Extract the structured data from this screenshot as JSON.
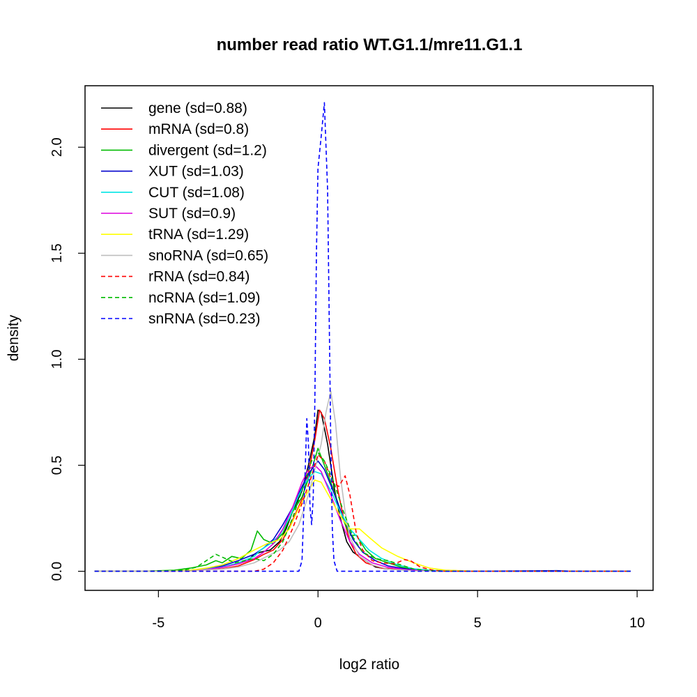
{
  "chart_data": {
    "type": "line",
    "title": "number read ratio WT.G1.1/mre11.G1.1",
    "xlabel": "log2 ratio",
    "ylabel": "density",
    "xlim": [
      -7.3,
      10.5
    ],
    "ylim": [
      -0.09,
      2.29
    ],
    "xticks": [
      -5,
      0,
      5,
      10
    ],
    "xtick_labels": [
      "-5",
      "0",
      "5",
      "10"
    ],
    "yticks": [
      0.0,
      0.5,
      1.0,
      1.5,
      2.0
    ],
    "ytick_labels": [
      "0.0",
      "0.5",
      "1.0",
      "1.5",
      "2.0"
    ],
    "grid": false,
    "legend_position": "top-left",
    "series": [
      {
        "name": "gene (sd=0.88)",
        "color": "#000000",
        "dash": "solid",
        "points": [
          [
            -7,
            0
          ],
          [
            -5,
            0
          ],
          [
            -4,
            0.002
          ],
          [
            -3.5,
            0.008
          ],
          [
            -3,
            0.02
          ],
          [
            -2.5,
            0.035
          ],
          [
            -2.2,
            0.05
          ],
          [
            -2,
            0.08
          ],
          [
            -1.8,
            0.09
          ],
          [
            -1.5,
            0.1
          ],
          [
            -1.2,
            0.14
          ],
          [
            -1,
            0.2
          ],
          [
            -0.8,
            0.28
          ],
          [
            -0.5,
            0.38
          ],
          [
            -0.3,
            0.5
          ],
          [
            -0.1,
            0.64
          ],
          [
            0,
            0.76
          ],
          [
            0.1,
            0.75
          ],
          [
            0.3,
            0.6
          ],
          [
            0.5,
            0.4
          ],
          [
            0.7,
            0.25
          ],
          [
            0.9,
            0.14
          ],
          [
            1.1,
            0.09
          ],
          [
            1.3,
            0.07
          ],
          [
            1.5,
            0.05
          ],
          [
            1.8,
            0.02
          ],
          [
            2.2,
            0.01
          ],
          [
            3,
            0.003
          ],
          [
            4,
            0
          ],
          [
            9.8,
            0
          ]
        ]
      },
      {
        "name": "mRNA (sd=0.8)",
        "color": "#ff0000",
        "dash": "solid",
        "points": [
          [
            -7,
            0
          ],
          [
            -5,
            0
          ],
          [
            -4,
            0.002
          ],
          [
            -3,
            0.012
          ],
          [
            -2.5,
            0.025
          ],
          [
            -2,
            0.055
          ],
          [
            -1.7,
            0.08
          ],
          [
            -1.4,
            0.1
          ],
          [
            -1.1,
            0.15
          ],
          [
            -0.8,
            0.24
          ],
          [
            -0.5,
            0.34
          ],
          [
            -0.3,
            0.46
          ],
          [
            -0.1,
            0.62
          ],
          [
            0.05,
            0.76
          ],
          [
            0.2,
            0.72
          ],
          [
            0.4,
            0.58
          ],
          [
            0.6,
            0.4
          ],
          [
            0.8,
            0.25
          ],
          [
            1,
            0.14
          ],
          [
            1.2,
            0.08
          ],
          [
            1.5,
            0.04
          ],
          [
            2,
            0.015
          ],
          [
            2.8,
            0.005
          ],
          [
            4,
            0
          ],
          [
            9.8,
            0
          ]
        ]
      },
      {
        "name": "divergent (sd=1.2)",
        "color": "#00bb00",
        "dash": "solid",
        "points": [
          [
            -7,
            0
          ],
          [
            -5.5,
            0
          ],
          [
            -4.5,
            0.005
          ],
          [
            -4,
            0.015
          ],
          [
            -3.5,
            0.03
          ],
          [
            -3.2,
            0.05
          ],
          [
            -3,
            0.04
          ],
          [
            -2.7,
            0.07
          ],
          [
            -2.4,
            0.06
          ],
          [
            -2.1,
            0.1
          ],
          [
            -1.9,
            0.19
          ],
          [
            -1.7,
            0.15
          ],
          [
            -1.4,
            0.13
          ],
          [
            -1.1,
            0.18
          ],
          [
            -0.8,
            0.28
          ],
          [
            -0.5,
            0.35
          ],
          [
            -0.2,
            0.48
          ],
          [
            0,
            0.58
          ],
          [
            0.2,
            0.5
          ],
          [
            0.5,
            0.38
          ],
          [
            0.8,
            0.24
          ],
          [
            1,
            0.17
          ],
          [
            1.2,
            0.17
          ],
          [
            1.5,
            0.1
          ],
          [
            1.8,
            0.06
          ],
          [
            2.2,
            0.04
          ],
          [
            2.6,
            0.02
          ],
          [
            3,
            0.008
          ],
          [
            3.5,
            0.003
          ],
          [
            4.5,
            0
          ],
          [
            9.8,
            0
          ]
        ]
      },
      {
        "name": "XUT (sd=1.03)",
        "color": "#0000cc",
        "dash": "solid",
        "points": [
          [
            -7,
            0
          ],
          [
            -5,
            0
          ],
          [
            -4,
            0.005
          ],
          [
            -3.5,
            0.012
          ],
          [
            -3,
            0.025
          ],
          [
            -2.5,
            0.05
          ],
          [
            -2,
            0.08
          ],
          [
            -1.7,
            0.11
          ],
          [
            -1.4,
            0.15
          ],
          [
            -1.1,
            0.22
          ],
          [
            -0.8,
            0.3
          ],
          [
            -0.5,
            0.4
          ],
          [
            -0.3,
            0.46
          ],
          [
            -0.1,
            0.5
          ],
          [
            0,
            0.52
          ],
          [
            0.2,
            0.48
          ],
          [
            0.5,
            0.37
          ],
          [
            0.8,
            0.25
          ],
          [
            1.1,
            0.15
          ],
          [
            1.4,
            0.09
          ],
          [
            1.8,
            0.05
          ],
          [
            2.2,
            0.025
          ],
          [
            2.8,
            0.01
          ],
          [
            3.5,
            0.003
          ],
          [
            4.5,
            0
          ],
          [
            7.5,
            0.003
          ],
          [
            8,
            0
          ],
          [
            9.8,
            0
          ]
        ]
      },
      {
        "name": "CUT (sd=1.08)",
        "color": "#00e5e5",
        "dash": "solid",
        "points": [
          [
            -7,
            0
          ],
          [
            -5,
            0
          ],
          [
            -4,
            0.004
          ],
          [
            -3.5,
            0.01
          ],
          [
            -3,
            0.02
          ],
          [
            -2.5,
            0.04
          ],
          [
            -2,
            0.07
          ],
          [
            -1.8,
            0.1
          ],
          [
            -1.5,
            0.13
          ],
          [
            -1.2,
            0.17
          ],
          [
            -0.9,
            0.25
          ],
          [
            -0.6,
            0.36
          ],
          [
            -0.3,
            0.44
          ],
          [
            -0.1,
            0.47
          ],
          [
            0.1,
            0.46
          ],
          [
            0.4,
            0.38
          ],
          [
            0.7,
            0.28
          ],
          [
            1,
            0.2
          ],
          [
            1.3,
            0.15
          ],
          [
            1.6,
            0.1
          ],
          [
            2,
            0.06
          ],
          [
            2.5,
            0.03
          ],
          [
            3,
            0.012
          ],
          [
            3.6,
            0.004
          ],
          [
            4.5,
            0
          ],
          [
            9.8,
            0
          ]
        ]
      },
      {
        "name": "SUT (sd=0.9)",
        "color": "#dd00dd",
        "dash": "solid",
        "points": [
          [
            -7,
            0
          ],
          [
            -5,
            0
          ],
          [
            -4,
            0.003
          ],
          [
            -3.5,
            0.008
          ],
          [
            -3,
            0.018
          ],
          [
            -2.5,
            0.035
          ],
          [
            -2,
            0.06
          ],
          [
            -1.7,
            0.09
          ],
          [
            -1.4,
            0.13
          ],
          [
            -1.1,
            0.2
          ],
          [
            -0.8,
            0.3
          ],
          [
            -0.5,
            0.42
          ],
          [
            -0.3,
            0.48
          ],
          [
            -0.1,
            0.5
          ],
          [
            0.1,
            0.47
          ],
          [
            0.4,
            0.36
          ],
          [
            0.7,
            0.24
          ],
          [
            1,
            0.14
          ],
          [
            1.3,
            0.08
          ],
          [
            1.7,
            0.04
          ],
          [
            2.2,
            0.018
          ],
          [
            2.8,
            0.007
          ],
          [
            3.5,
            0.002
          ],
          [
            4.5,
            0
          ],
          [
            9.8,
            0
          ]
        ]
      },
      {
        "name": "tRNA (sd=1.29)",
        "color": "#ffff00",
        "dash": "solid",
        "points": [
          [
            -7,
            0
          ],
          [
            -5,
            0
          ],
          [
            -4,
            0.005
          ],
          [
            -3.5,
            0.015
          ],
          [
            -3,
            0.03
          ],
          [
            -2.5,
            0.06
          ],
          [
            -2,
            0.1
          ],
          [
            -1.6,
            0.13
          ],
          [
            -1.2,
            0.15
          ],
          [
            -0.9,
            0.2
          ],
          [
            -0.6,
            0.3
          ],
          [
            -0.3,
            0.38
          ],
          [
            -0.1,
            0.43
          ],
          [
            0.1,
            0.42
          ],
          [
            0.4,
            0.34
          ],
          [
            0.7,
            0.26
          ],
          [
            1,
            0.2
          ],
          [
            1.3,
            0.2
          ],
          [
            1.6,
            0.16
          ],
          [
            2,
            0.11
          ],
          [
            2.5,
            0.07
          ],
          [
            3,
            0.04
          ],
          [
            3.5,
            0.015
          ],
          [
            4,
            0.005
          ],
          [
            5,
            0
          ],
          [
            9.8,
            0
          ]
        ]
      },
      {
        "name": "snoRNA (sd=0.65)",
        "color": "#bebebe",
        "dash": "solid",
        "points": [
          [
            -7,
            0
          ],
          [
            -5,
            0
          ],
          [
            -4,
            0.002
          ],
          [
            -3,
            0.01
          ],
          [
            -2.5,
            0.02
          ],
          [
            -2,
            0.04
          ],
          [
            -1.6,
            0.07
          ],
          [
            -1.2,
            0.1
          ],
          [
            -0.9,
            0.14
          ],
          [
            -0.6,
            0.22
          ],
          [
            -0.3,
            0.36
          ],
          [
            -0.1,
            0.48
          ],
          [
            0.1,
            0.6
          ],
          [
            0.25,
            0.75
          ],
          [
            0.4,
            0.85
          ],
          [
            0.55,
            0.7
          ],
          [
            0.7,
            0.45
          ],
          [
            0.85,
            0.28
          ],
          [
            1,
            0.16
          ],
          [
            1.3,
            0.07
          ],
          [
            1.7,
            0.03
          ],
          [
            2.2,
            0.01
          ],
          [
            3,
            0.002
          ],
          [
            4,
            0
          ],
          [
            9.8,
            0
          ]
        ]
      },
      {
        "name": "rRNA (sd=0.84)",
        "color": "#ff0000",
        "dash": "dashed",
        "points": [
          [
            -7,
            0
          ],
          [
            -2,
            0
          ],
          [
            -1.7,
            0.01
          ],
          [
            -1.4,
            0.04
          ],
          [
            -1.1,
            0.1
          ],
          [
            -0.8,
            0.2
          ],
          [
            -0.5,
            0.32
          ],
          [
            -0.2,
            0.45
          ],
          [
            0,
            0.55
          ],
          [
            0.2,
            0.52
          ],
          [
            0.45,
            0.42
          ],
          [
            0.65,
            0.4
          ],
          [
            0.85,
            0.45
          ],
          [
            1,
            0.36
          ],
          [
            1.2,
            0.18
          ],
          [
            1.4,
            0.1
          ],
          [
            1.7,
            0.05
          ],
          [
            2,
            0.04
          ],
          [
            2.4,
            0.035
          ],
          [
            2.7,
            0.055
          ],
          [
            2.9,
            0.05
          ],
          [
            3.2,
            0.02
          ],
          [
            3.6,
            0.005
          ],
          [
            4,
            0
          ],
          [
            9.8,
            0
          ]
        ]
      },
      {
        "name": "ncRNA (sd=1.09)",
        "color": "#00bb00",
        "dash": "dashed",
        "points": [
          [
            -7,
            0
          ],
          [
            -5,
            0
          ],
          [
            -4.2,
            0.005
          ],
          [
            -3.8,
            0.02
          ],
          [
            -3.5,
            0.05
          ],
          [
            -3.2,
            0.08
          ],
          [
            -2.9,
            0.06
          ],
          [
            -2.6,
            0.04
          ],
          [
            -2.3,
            0.05
          ],
          [
            -2,
            0.06
          ],
          [
            -1.7,
            0.05
          ],
          [
            -1.4,
            0.08
          ],
          [
            -1.1,
            0.14
          ],
          [
            -0.8,
            0.25
          ],
          [
            -0.5,
            0.38
          ],
          [
            -0.2,
            0.52
          ],
          [
            0,
            0.56
          ],
          [
            0.2,
            0.52
          ],
          [
            0.5,
            0.42
          ],
          [
            0.8,
            0.28
          ],
          [
            1.1,
            0.16
          ],
          [
            1.4,
            0.09
          ],
          [
            1.8,
            0.06
          ],
          [
            2.2,
            0.05
          ],
          [
            2.6,
            0.03
          ],
          [
            3,
            0.01
          ],
          [
            3.5,
            0.003
          ],
          [
            4,
            0
          ],
          [
            9.8,
            0
          ]
        ]
      },
      {
        "name": "snRNA (sd=0.23)",
        "color": "#0000ff",
        "dash": "dashed",
        "points": [
          [
            -7,
            0
          ],
          [
            -0.6,
            0
          ],
          [
            -0.5,
            0.05
          ],
          [
            -0.4,
            0.48
          ],
          [
            -0.35,
            0.72
          ],
          [
            -0.3,
            0.6
          ],
          [
            -0.25,
            0.3
          ],
          [
            -0.2,
            0.22
          ],
          [
            -0.15,
            0.35
          ],
          [
            -0.1,
            0.8
          ],
          [
            -0.05,
            1.5
          ],
          [
            0,
            1.9
          ],
          [
            0.1,
            2.05
          ],
          [
            0.2,
            2.21
          ],
          [
            0.3,
            1.8
          ],
          [
            0.35,
            1.2
          ],
          [
            0.4,
            0.6
          ],
          [
            0.45,
            0.2
          ],
          [
            0.5,
            0.05
          ],
          [
            0.6,
            0
          ],
          [
            9.8,
            0
          ]
        ]
      }
    ]
  }
}
